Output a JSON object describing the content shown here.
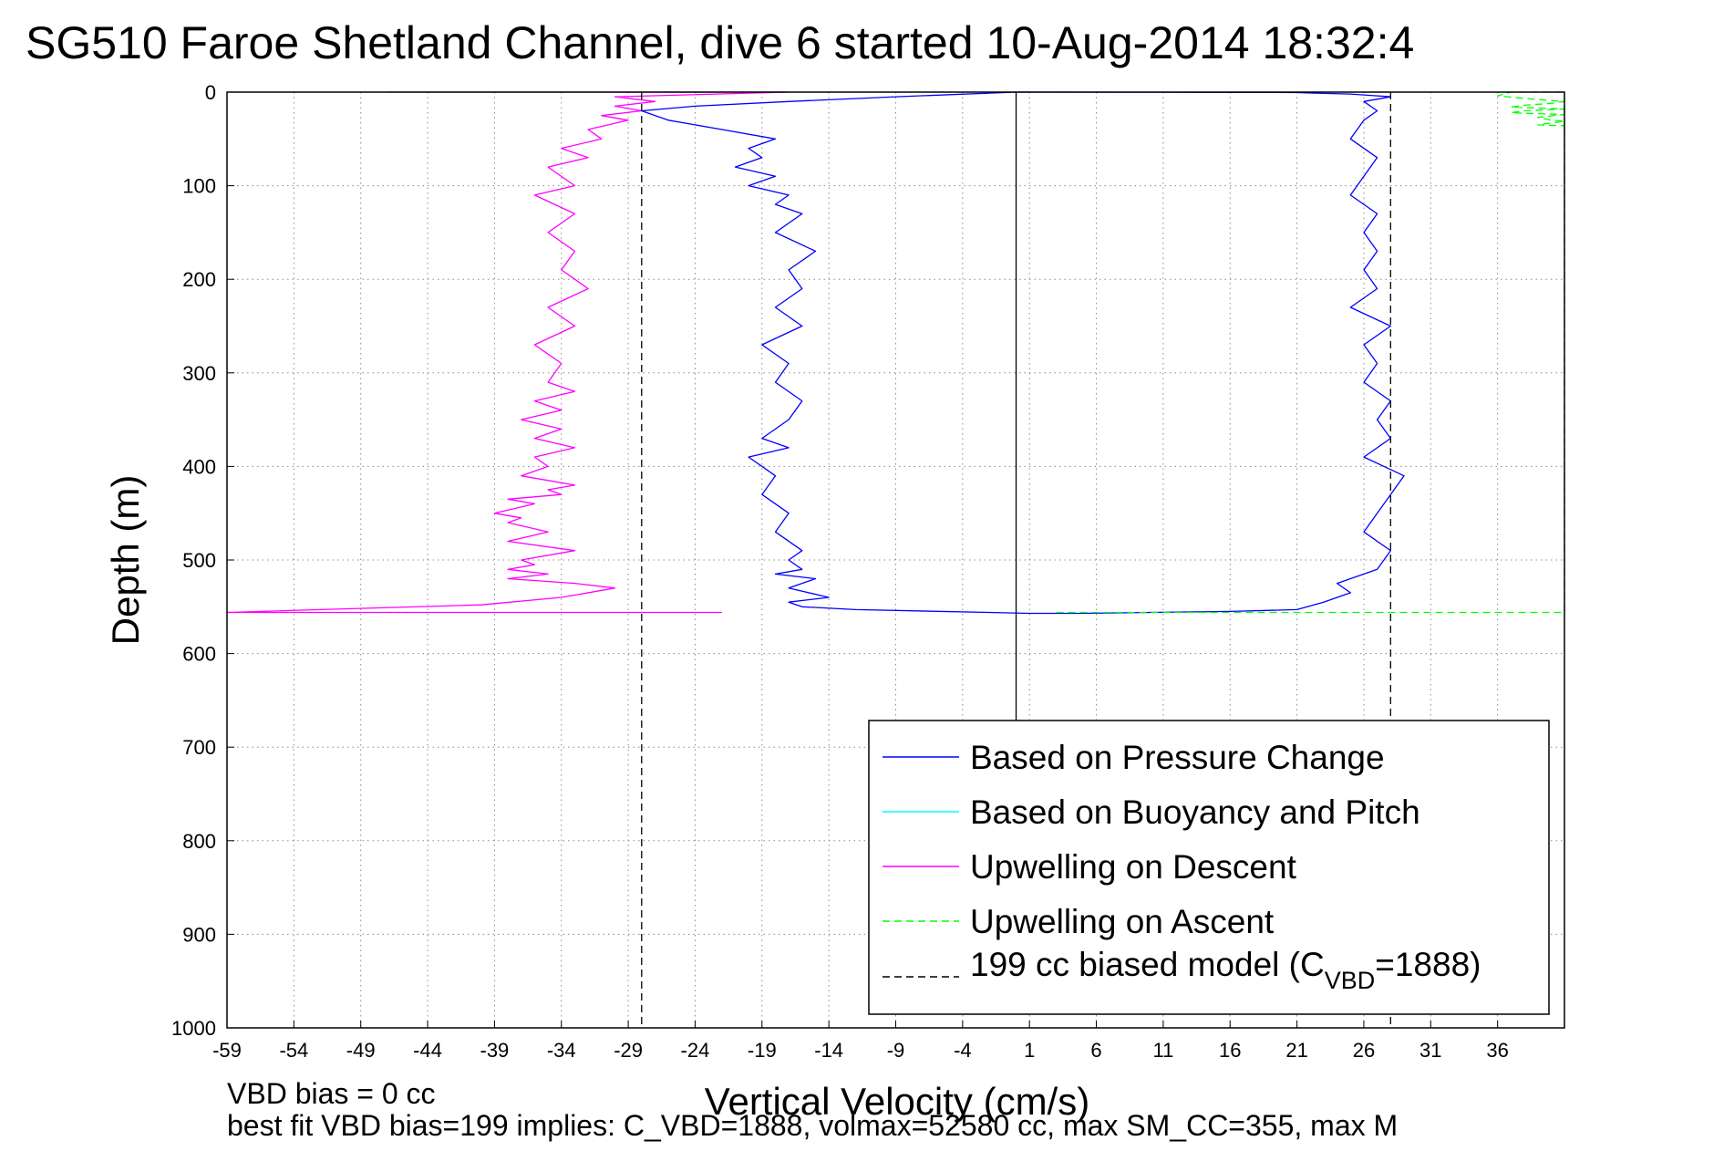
{
  "chart_data": {
    "type": "line",
    "title": "SG510 Faroe Shetland Channel, dive 6 started 10-Aug-2014 18:32:4",
    "xlabel": "Vertical Velocity (cm/s)",
    "ylabel": "Depth (m)",
    "xlim": [
      -59,
      41
    ],
    "ylim": [
      0,
      1000
    ],
    "y_reversed": true,
    "grid": true,
    "x_ticks": [
      -59,
      -54,
      -49,
      -44,
      -39,
      -34,
      -29,
      -24,
      -19,
      -14,
      -9,
      -4,
      1,
      6,
      11,
      16,
      21,
      26,
      31,
      36
    ],
    "y_ticks": [
      0,
      100,
      200,
      300,
      400,
      500,
      600,
      700,
      800,
      900,
      1000
    ],
    "legend_position": "bottom-right",
    "footnote_1": "VBD bias = 0 cc",
    "footnote_2": "best fit VBD bias=199 implies: C_VBD=1888, volmax=52580 cc, max SM_CC=355, max M",
    "series": [
      {
        "name": "Based on Pressure Change",
        "color": "#0000ff",
        "style": "solid",
        "x": [
          0,
          -9,
          -17,
          -24,
          -28,
          -26,
          -22,
          -18,
          -20,
          -19,
          -21,
          -18,
          -20,
          -17,
          -18,
          -16,
          -18,
          -15,
          -17,
          -16,
          -18,
          -16,
          -19,
          -17,
          -18,
          -16,
          -17,
          -19,
          -17,
          -20,
          -18,
          -19,
          -17,
          -18,
          -16,
          -17,
          -16,
          -18,
          -15,
          -17,
          -14,
          -17,
          -16,
          -12,
          -2,
          1,
          5,
          10,
          16,
          21,
          23,
          25,
          24,
          26,
          27,
          28,
          26,
          27,
          28,
          29,
          26,
          28,
          27,
          28,
          26,
          27,
          26,
          28,
          25,
          27,
          26,
          27,
          26,
          27,
          25,
          26,
          27,
          25,
          26,
          27,
          26,
          28,
          26,
          25,
          22,
          21,
          18,
          14,
          8,
          3,
          0
        ],
        "y": [
          0,
          5,
          10,
          15,
          20,
          30,
          40,
          50,
          60,
          70,
          80,
          90,
          100,
          110,
          120,
          130,
          150,
          170,
          190,
          210,
          230,
          250,
          270,
          290,
          310,
          330,
          350,
          370,
          380,
          390,
          410,
          430,
          450,
          470,
          490,
          500,
          510,
          515,
          520,
          530,
          540,
          545,
          550,
          553,
          556,
          557,
          557,
          556,
          555,
          553,
          545,
          535,
          525,
          515,
          510,
          490,
          470,
          450,
          430,
          410,
          390,
          370,
          350,
          330,
          310,
          290,
          270,
          250,
          230,
          210,
          190,
          170,
          150,
          130,
          110,
          90,
          70,
          50,
          30,
          20,
          10,
          5,
          3,
          2,
          1,
          0.5,
          0.3,
          0.2,
          0.1,
          0,
          0
        ]
      },
      {
        "name": "Based on Buoyancy and Pitch",
        "color": "#00ffff",
        "style": "solid",
        "x": [],
        "y": []
      },
      {
        "name": "Upwelling on Descent",
        "color": "#ff00ff",
        "style": "solid",
        "x": [
          -47,
          -17,
          -30,
          -27,
          -30,
          -28,
          -31,
          -29,
          -32,
          -31,
          -34,
          -32,
          -35,
          -33,
          -36,
          -33,
          -35,
          -33,
          -34,
          -32,
          -35,
          -33,
          -36,
          -34,
          -35,
          -33,
          -36,
          -34,
          -37,
          -34,
          -36,
          -33,
          -36,
          -35,
          -37,
          -33,
          -35,
          -34,
          -38,
          -36,
          -39,
          -37,
          -38,
          -35,
          -38,
          -33,
          -37,
          -36,
          -38,
          -35,
          -38,
          -33,
          -30,
          -34,
          -40,
          -52,
          -59,
          -22
        ],
        "y": [
          0,
          0,
          5,
          10,
          15,
          20,
          25,
          30,
          40,
          50,
          60,
          70,
          80,
          100,
          110,
          130,
          150,
          170,
          190,
          210,
          230,
          250,
          270,
          290,
          310,
          320,
          330,
          340,
          350,
          360,
          370,
          380,
          390,
          400,
          410,
          420,
          425,
          430,
          435,
          440,
          450,
          455,
          460,
          470,
          480,
          490,
          500,
          505,
          510,
          515,
          520,
          525,
          530,
          540,
          548,
          553,
          556,
          556
        ]
      },
      {
        "name": "Upwelling on Ascent",
        "color": "#00ff00",
        "style": "dashed",
        "x": [
          3,
          10,
          20,
          30,
          41,
          41,
          37,
          36,
          39,
          41,
          40,
          38,
          37,
          41,
          38,
          37,
          41,
          39,
          40,
          41,
          40,
          39,
          41
        ],
        "y": [
          556,
          556,
          556,
          556,
          556,
          0,
          0,
          4,
          8,
          10,
          12,
          14,
          16,
          18,
          20,
          22,
          24,
          27,
          30,
          31,
          33,
          35,
          36
        ]
      },
      {
        "name": "199 cc biased model (C_VBD=1888)",
        "legend_label_main": "199 cc biased model (C",
        "legend_label_sub": "VBD",
        "legend_label_tail": "=1888)",
        "color": "#000000",
        "style": "dashed",
        "x": [
          -28,
          -28,
          null,
          28,
          28
        ],
        "y": [
          0,
          1000,
          null,
          0,
          1000
        ]
      }
    ],
    "reference_lines": [
      {
        "x": 0,
        "color": "#000000",
        "style": "solid",
        "y_range": [
          0,
          700
        ]
      }
    ]
  }
}
